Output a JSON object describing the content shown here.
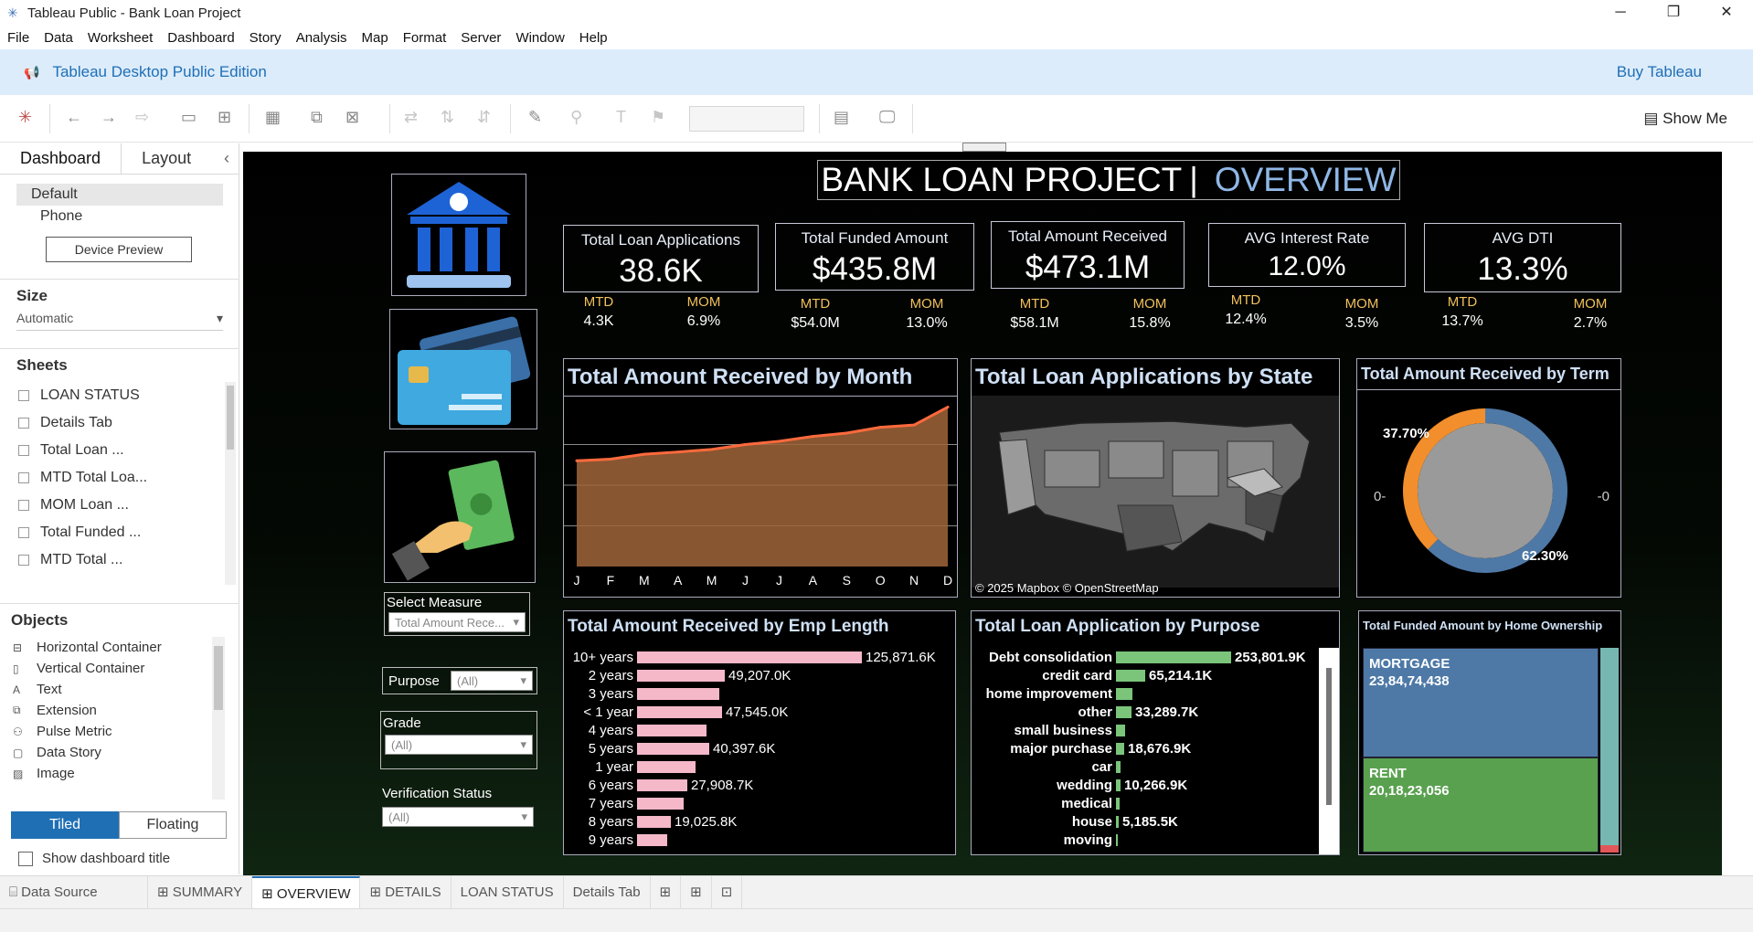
{
  "window": {
    "title": "Tableau Public - Bank Loan Project"
  },
  "menu": [
    "File",
    "Data",
    "Worksheet",
    "Dashboard",
    "Story",
    "Analysis",
    "Map",
    "Format",
    "Server",
    "Window",
    "Help"
  ],
  "banner": {
    "edition": "Tableau Desktop Public Edition",
    "buy": "Buy Tableau"
  },
  "toolbar": {
    "show_me": "Show Me"
  },
  "left_pane": {
    "tabs": [
      "Dashboard",
      "Layout"
    ],
    "device_options": [
      "Default",
      "Phone"
    ],
    "device_preview": "Device Preview",
    "size_header": "Size",
    "size_value": "Automatic",
    "sheets_header": "Sheets",
    "sheets": [
      "LOAN STATUS",
      "Details Tab",
      "Total Loan ...",
      "MTD Total Loa...",
      "MOM Loan ...",
      "Total Funded ...",
      "MTD Total ..."
    ],
    "objects_header": "Objects",
    "objects": [
      "Horizontal Container",
      "Vertical Container",
      "Text",
      "Extension",
      "Pulse Metric",
      "Data Story",
      "Image"
    ],
    "tiled": "Tiled",
    "floating": "Floating",
    "show_title": "Show dashboard title"
  },
  "dashboard": {
    "title_main": "BANK LOAN PROJECT",
    "title_sep": "|",
    "title_sub": "OVERVIEW",
    "kpis": [
      {
        "label": "Total Loan Applications",
        "value": "38.6K",
        "mtd_label": "MTD",
        "mtd": "4.3K",
        "mom_label": "MOM",
        "mom": "6.9%"
      },
      {
        "label": "Total Funded Amount",
        "value": "$435.8M",
        "mtd_label": "MTD",
        "mtd": "$54.0M",
        "mom_label": "MOM",
        "mom": "13.0%"
      },
      {
        "label": "Total Amount Received",
        "value": "$473.1M",
        "mtd_label": "MTD",
        "mtd": "$58.1M",
        "mom_label": "MOM",
        "mom": "15.8%"
      },
      {
        "label": "AVG Interest Rate",
        "value": "12.0%",
        "mtd_label": "MTD",
        "mtd": "12.4%",
        "mom_label": "MOM",
        "mom": "3.5%"
      },
      {
        "label": "AVG DTI",
        "value": "13.3%",
        "mtd_label": "MTD",
        "mtd": "13.7%",
        "mom_label": "MOM",
        "mom": "2.7%"
      }
    ],
    "filters": {
      "select_measure": {
        "label": "Select Measure",
        "value": "Total Amount Rece..."
      },
      "purpose": {
        "label": "Purpose",
        "value": "(All)"
      },
      "grade": {
        "label": "Grade",
        "value": "(All)"
      },
      "verification": {
        "label": "Verification Status",
        "value": "(All)"
      }
    },
    "map": {
      "title": "Total Loan Applications by State",
      "attribution": "© 2025 Mapbox © OpenStreetMap"
    },
    "term": {
      "title": "Total Amount Received by Term",
      "left_axis": "0-",
      "right_axis": "-0"
    },
    "home": {
      "title": "Total Funded Amount by Home Ownership",
      "mortgage_label": "MORTGAGE",
      "mortgage_value": "23,84,74,438",
      "rent_label": "RENT",
      "rent_value": "20,18,23,056"
    }
  },
  "chart_data": [
    {
      "type": "area",
      "title": "Total Amount Received by Month",
      "categories": [
        "J",
        "F",
        "M",
        "A",
        "M",
        "J",
        "J",
        "A",
        "S",
        "O",
        "N",
        "D"
      ],
      "values": [
        32.5,
        33.0,
        34.5,
        35.2,
        36.0,
        37.5,
        38.5,
        40.0,
        41.0,
        42.8,
        43.5,
        49.0
      ],
      "ylim": [
        0,
        50
      ],
      "ylabel": "",
      "xlabel": ""
    },
    {
      "type": "pie",
      "title": "Total Amount Received by Term",
      "labels": [
        "37.70%",
        "62.30%"
      ],
      "values": [
        37.7,
        62.3
      ],
      "colors": [
        "#f28e2b",
        "#4e79a7"
      ]
    },
    {
      "type": "bar",
      "title": "Total Amount Received by Emp Length",
      "categories": [
        "10+ years",
        "2 years",
        "3 years",
        "< 1 year",
        "4 years",
        "5 years",
        "1 year",
        "6 years",
        "7 years",
        "8 years",
        "9 years"
      ],
      "values": [
        125871.6,
        49207.0,
        46000,
        47545.0,
        39000,
        40397.6,
        33000,
        27908.7,
        26000,
        19025.8,
        17000
      ],
      "labels": [
        "125,871.6K",
        "49,207.0K",
        "",
        "47,545.0K",
        "",
        "40,397.6K",
        "",
        "27,908.7K",
        "",
        "19,025.8K",
        ""
      ],
      "color": "#f5b8c8"
    },
    {
      "type": "bar",
      "title": "Total Loan Application by Purpose",
      "categories": [
        "Debt consolidation",
        "credit card",
        "home improvement",
        "other",
        "small business",
        "major purchase",
        "car",
        "wedding",
        "medical",
        "house",
        "moving"
      ],
      "values": [
        253801.9,
        65214.1,
        36000,
        33289.7,
        20000,
        18676.9,
        10500,
        10266.9,
        8000,
        5185.5,
        4200
      ],
      "labels": [
        "253,801.9K",
        "65,214.1K",
        "",
        "33,289.7K",
        "",
        "18,676.9K",
        "",
        "10,266.9K",
        "",
        "5,185.5K",
        ""
      ],
      "color": "#7bc57b"
    }
  ],
  "bottom_tabs": [
    "Data Source",
    "SUMMARY",
    "OVERVIEW",
    "DETAILS",
    "LOAN STATUS",
    "Details Tab"
  ]
}
